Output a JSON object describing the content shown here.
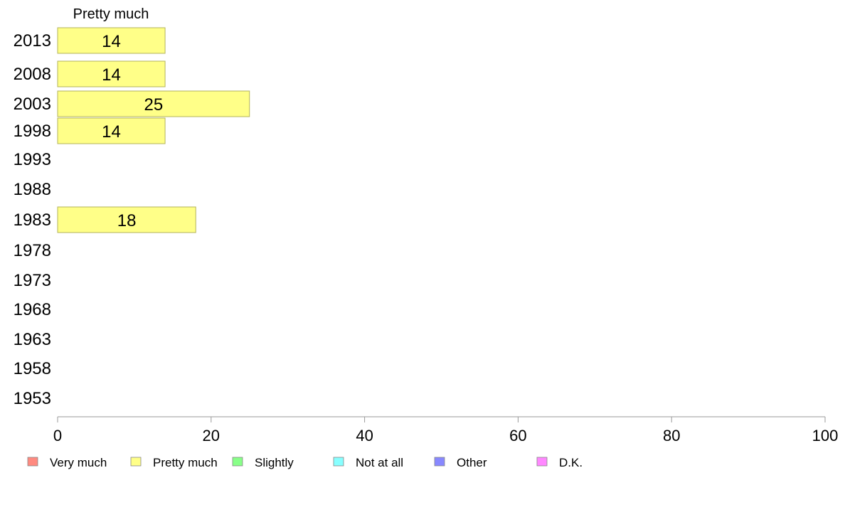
{
  "chart_data": {
    "type": "bar",
    "orientation": "horizontal",
    "title": "Pretty much",
    "categories": [
      "2013",
      "2008",
      "2003",
      "1998",
      "1993",
      "1988",
      "1983",
      "1978",
      "1973",
      "1968",
      "1963",
      "1958",
      "1953"
    ],
    "series": [
      {
        "name": "Pretty much",
        "values": [
          14,
          14,
          25,
          14,
          null,
          null,
          18,
          null,
          null,
          null,
          null,
          null,
          null
        ],
        "labels": [
          "14",
          "14",
          "25",
          "14",
          "",
          "",
          "18",
          "",
          "",
          "",
          "",
          "",
          ""
        ]
      }
    ],
    "xlim": [
      0,
      100
    ],
    "xticks": [
      "0",
      "20",
      "40",
      "60",
      "80",
      "100"
    ],
    "grid": false,
    "legend": {
      "position": "bottom",
      "items": [
        {
          "label": "Very much",
          "color": "#ff8a80"
        },
        {
          "label": "Pretty much",
          "color": "#ffff88"
        },
        {
          "label": "Slightly",
          "color": "#88ff88"
        },
        {
          "label": "Not at all",
          "color": "#88ffff"
        },
        {
          "label": "Other",
          "color": "#8888ff"
        },
        {
          "label": "D.K.",
          "color": "#ff88ff"
        }
      ]
    },
    "colors": {
      "bar_fill": "#ffff88",
      "bar_stroke": "#b3b35a",
      "axis": "#999999"
    }
  }
}
